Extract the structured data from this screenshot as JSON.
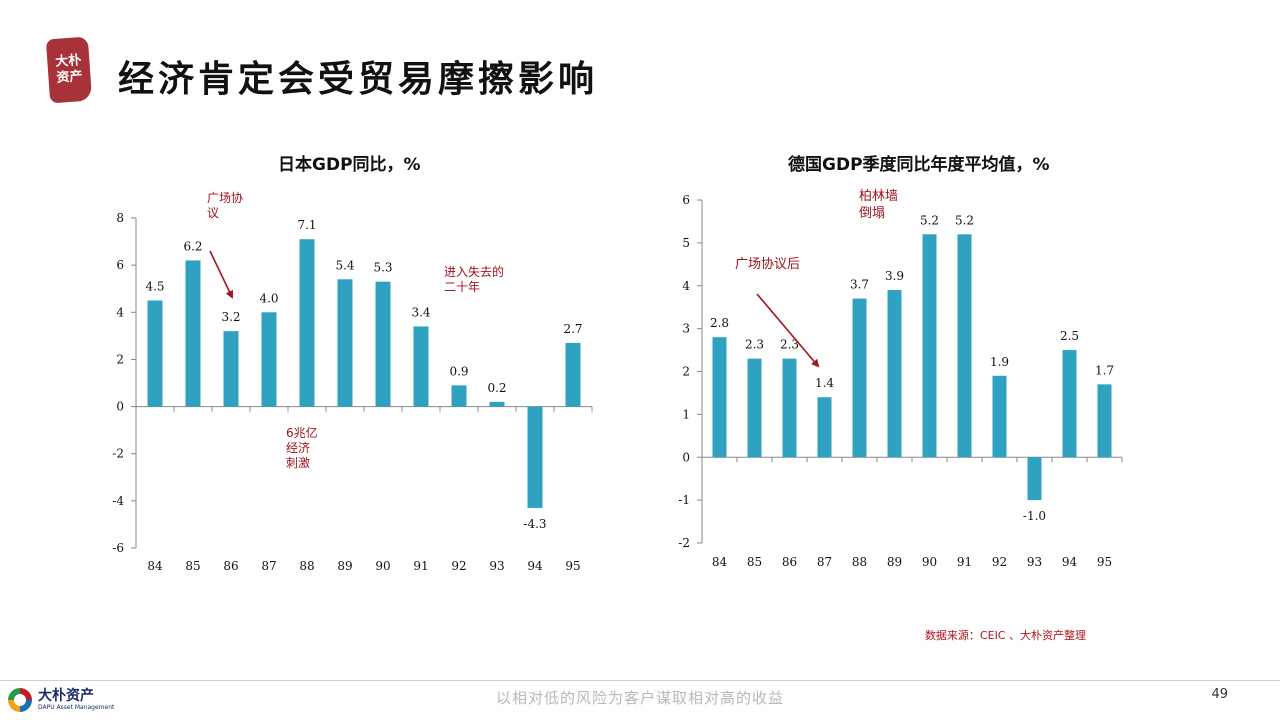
{
  "header": {
    "seal_text": "大朴资产",
    "title": "经济肯定会受贸易摩擦影响"
  },
  "charts": [
    {
      "id": "japan",
      "title": "日本GDP同比，%",
      "annotations": [
        {
          "key": "plaza",
          "text": [
            "广场协",
            "议"
          ]
        },
        {
          "key": "stimulus",
          "text": [
            "6兆亿",
            "经济",
            "刺激"
          ]
        },
        {
          "key": "lost",
          "text": [
            "进入失去的",
            "二十年"
          ]
        }
      ]
    },
    {
      "id": "germany",
      "title": "德国GDP季度同比年度平均值，%",
      "annotations": [
        {
          "key": "plaza",
          "text": [
            "广场协议后"
          ]
        },
        {
          "key": "wall",
          "text": [
            "柏林墙",
            "倒塌"
          ]
        }
      ]
    }
  ],
  "chart_data": [
    {
      "type": "bar",
      "title": "日本GDP同比，%",
      "categories": [
        "84",
        "85",
        "86",
        "87",
        "88",
        "89",
        "90",
        "91",
        "92",
        "93",
        "94",
        "95"
      ],
      "values": [
        4.5,
        6.2,
        3.2,
        4.0,
        7.1,
        5.4,
        5.3,
        3.4,
        0.9,
        0.2,
        -4.3,
        2.7
      ],
      "value_labels": [
        "4.5",
        "6.2",
        "3.2",
        "4.0",
        "7.1",
        "5.4",
        "5.3",
        "3.4",
        "0.9",
        "0.2",
        "-4.3",
        "2.7"
      ],
      "ylim": [
        -6,
        8
      ],
      "yticks": [
        "-6",
        "-4",
        "-2",
        "0",
        "2",
        "4",
        "6",
        "8"
      ],
      "bar_color": "#2fa2c1",
      "grid": false,
      "legend": "none"
    },
    {
      "type": "bar",
      "title": "德国GDP季度同比年度平均值，%",
      "categories": [
        "84",
        "85",
        "86",
        "87",
        "88",
        "89",
        "90",
        "91",
        "92",
        "93",
        "94",
        "95"
      ],
      "values": [
        2.8,
        2.3,
        2.3,
        1.4,
        3.7,
        3.9,
        5.2,
        5.2,
        1.9,
        -1.0,
        2.5,
        1.7
      ],
      "value_labels": [
        "2.8",
        "2.3",
        "2.3",
        "1.4",
        "3.7",
        "3.9",
        "5.2",
        "5.2",
        "1.9",
        "-1.0",
        "2.5",
        "1.7"
      ],
      "ylim": [
        -2,
        6
      ],
      "yticks": [
        "-2",
        "-1",
        "0",
        "1",
        "2",
        "3",
        "4",
        "5",
        "6"
      ],
      "bar_color": "#2fa2c1",
      "grid": false,
      "legend": "none"
    }
  ],
  "footer": {
    "source": "数据来源：CEIC 、大朴资产整理",
    "brand": "大朴资产",
    "brand_en": "DAPU Asset Management",
    "slogan": "以相对低的风险为客户谋取相对高的收益",
    "page_number": "49"
  },
  "colors": {
    "bar": "#2fa2c1",
    "annotation": "#a0141e",
    "seal": "#a8323a"
  }
}
